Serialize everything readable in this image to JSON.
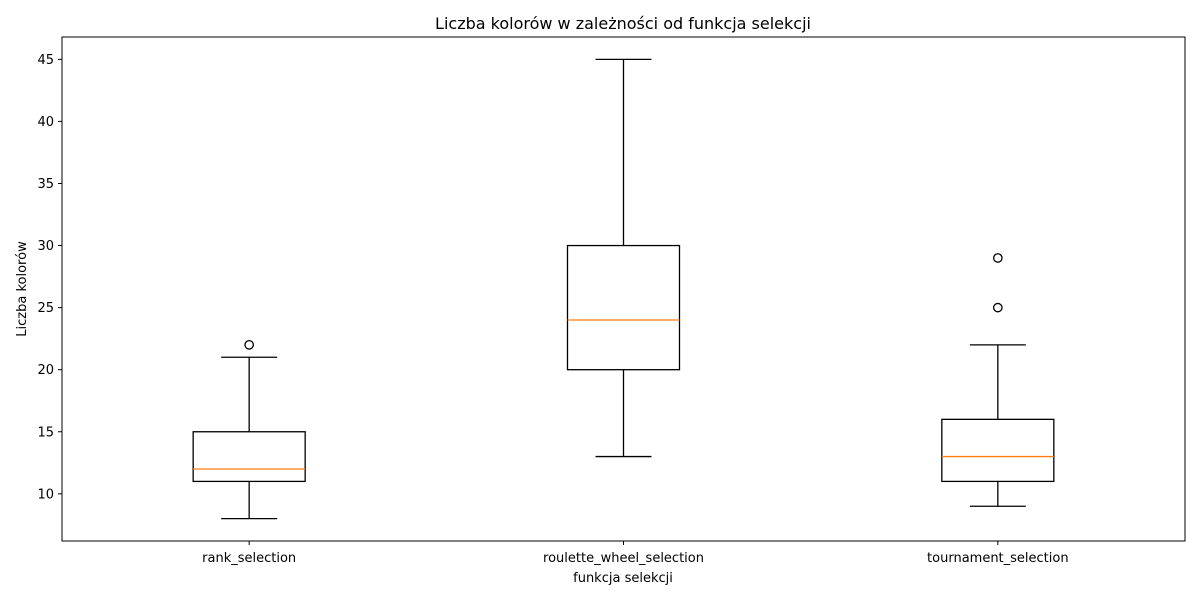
{
  "chart_data": {
    "type": "box",
    "title": "Liczba kolorów w zależności od funkcja selekcji",
    "xlabel": "funkcja selekcji",
    "ylabel": "Liczba kolorów",
    "ylim": [
      6.2,
      46.8
    ],
    "yticks": [
      10,
      15,
      20,
      25,
      30,
      35,
      40,
      45
    ],
    "grid": false,
    "colors": {
      "box": "#000000",
      "median": "#ff7f0e",
      "flier": "#000000"
    },
    "categories": [
      "rank_selection",
      "roulette_wheel_selection",
      "tournament_selection"
    ],
    "boxes": [
      {
        "name": "rank_selection",
        "whisker_low": 8,
        "q1": 11,
        "median": 12,
        "q3": 15,
        "whisker_high": 21,
        "outliers": [
          22
        ]
      },
      {
        "name": "roulette_wheel_selection",
        "whisker_low": 13,
        "q1": 20,
        "median": 24,
        "q3": 30,
        "whisker_high": 45,
        "outliers": []
      },
      {
        "name": "tournament_selection",
        "whisker_low": 9,
        "q1": 11,
        "median": 13,
        "q3": 16,
        "whisker_high": 22,
        "outliers": [
          25,
          29
        ]
      }
    ]
  }
}
